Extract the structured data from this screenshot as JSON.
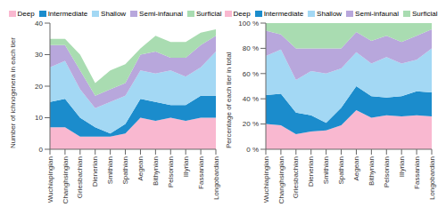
{
  "chart_data": [
    {
      "type": "area",
      "stacked": true,
      "legend": "top",
      "ylabel": "Number of ichnogenera in each tier",
      "categories": [
        "Wuchiapingian",
        "Changhsingian",
        "Griesbachian",
        "Dienerian",
        "Smithian",
        "Spathian",
        "Aegean",
        "Bithynian",
        "Pelsonian",
        "Illyrian",
        "Fassanian",
        "Longobardian"
      ],
      "ylim": [
        0,
        40
      ],
      "yticks": [
        0,
        10,
        20,
        30,
        40
      ],
      "series": [
        {
          "name": "Deep",
          "color": "#f9b8d0",
          "values": [
            7,
            7,
            4,
            4,
            4,
            5,
            10,
            9,
            10,
            9,
            10,
            10
          ]
        },
        {
          "name": "Intermediate",
          "color": "#1b8ccc",
          "values": [
            8,
            9,
            6,
            3,
            1,
            3,
            6,
            6,
            4,
            5,
            7,
            7
          ]
        },
        {
          "name": "Shallow",
          "color": "#a3d8f4",
          "values": [
            11,
            12,
            9,
            6,
            10,
            9,
            9,
            9,
            11,
            9,
            9,
            14
          ]
        },
        {
          "name": "Semi-infaunal",
          "color": "#b8a7dc",
          "values": [
            7,
            5,
            6,
            4,
            4,
            4,
            5,
            7,
            4,
            6,
            7,
            5
          ]
        },
        {
          "name": "Surficial",
          "color": "#a9dcb1",
          "values": [
            2,
            2,
            5,
            4,
            6,
            6,
            2,
            5,
            5,
            5,
            4,
            2
          ]
        }
      ]
    },
    {
      "type": "area",
      "stacked": true,
      "legend": "top",
      "ylabel": "Percentage of each tier in total",
      "categories": [
        "Wuchiapingian",
        "Changhsingian",
        "Griesbachian",
        "Dienerian",
        "Smithian",
        "Spathian",
        "Aegean",
        "Bithynian",
        "Pelsonian",
        "Illyrian",
        "Fassanian",
        "Longobardian"
      ],
      "ylim": [
        0,
        100
      ],
      "yticks": [
        {
          "value": 0,
          "label": "0 %"
        },
        {
          "value": 20,
          "label": "20 %"
        },
        {
          "value": 40,
          "label": "40 %"
        },
        {
          "value": 60,
          "label": "60 %"
        },
        {
          "value": 80,
          "label": "80 %"
        },
        {
          "value": 100,
          "label": "100 %"
        }
      ],
      "series": [
        {
          "name": "Deep",
          "color": "#f9b8d0",
          "values": [
            20,
            19,
            12,
            14,
            15,
            19,
            31,
            25,
            27,
            26,
            27,
            26
          ]
        },
        {
          "name": "Intermediate",
          "color": "#1b8ccc",
          "values": [
            23,
            25,
            17,
            13,
            6,
            14,
            19,
            17,
            14,
            16,
            19,
            19
          ]
        },
        {
          "name": "Shallow",
          "color": "#a3d8f4",
          "values": [
            31,
            35,
            26,
            35,
            39,
            31,
            27,
            26,
            32,
            26,
            25,
            35
          ]
        },
        {
          "name": "Semi-infaunal",
          "color": "#b8a7dc",
          "values": [
            20,
            12,
            25,
            18,
            20,
            16,
            16,
            18,
            17,
            17,
            19,
            15
          ]
        },
        {
          "name": "Surficial",
          "color": "#a9dcb1",
          "values": [
            6,
            9,
            20,
            20,
            20,
            20,
            7,
            14,
            10,
            15,
            10,
            5
          ]
        }
      ]
    }
  ]
}
